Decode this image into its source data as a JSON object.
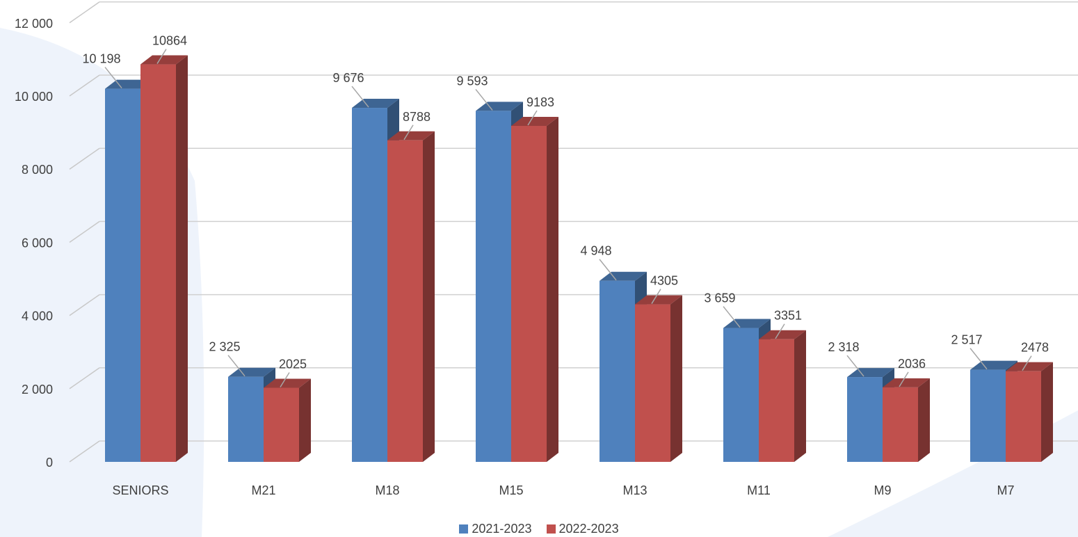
{
  "chart_data": {
    "type": "bar",
    "title": "",
    "xlabel": "",
    "ylabel": "",
    "categories": [
      "SENIORS",
      "M21",
      "M18",
      "M15",
      "M13",
      "M11",
      "M9",
      "M7"
    ],
    "series": [
      {
        "name": "2021-2023",
        "values": [
          10198,
          2325,
          9676,
          9593,
          4948,
          3659,
          2318,
          2517
        ],
        "labels": [
          "10 198",
          "2 325",
          "9 676",
          "9 593",
          "4 948",
          "3 659",
          "2 318",
          "2 517"
        ],
        "color": "#4F81BD"
      },
      {
        "name": "2022-2023",
        "values": [
          10864,
          2025,
          8788,
          9183,
          4305,
          3351,
          2036,
          2478
        ],
        "labels": [
          "10864",
          "2025",
          "8788",
          "9183",
          "4305",
          "3351",
          "2036",
          "2478"
        ],
        "color": "#C0504D"
      }
    ],
    "ylim": [
      0,
      12000
    ],
    "yticks": [
      0,
      2000,
      4000,
      6000,
      8000,
      10000,
      12000
    ],
    "ytick_labels": [
      "0",
      "2 000",
      "4 000",
      "6 000",
      "8 000",
      "10 000",
      "12 000"
    ],
    "grid": true,
    "legend_position": "bottom",
    "style": "3d-clustered-column"
  }
}
